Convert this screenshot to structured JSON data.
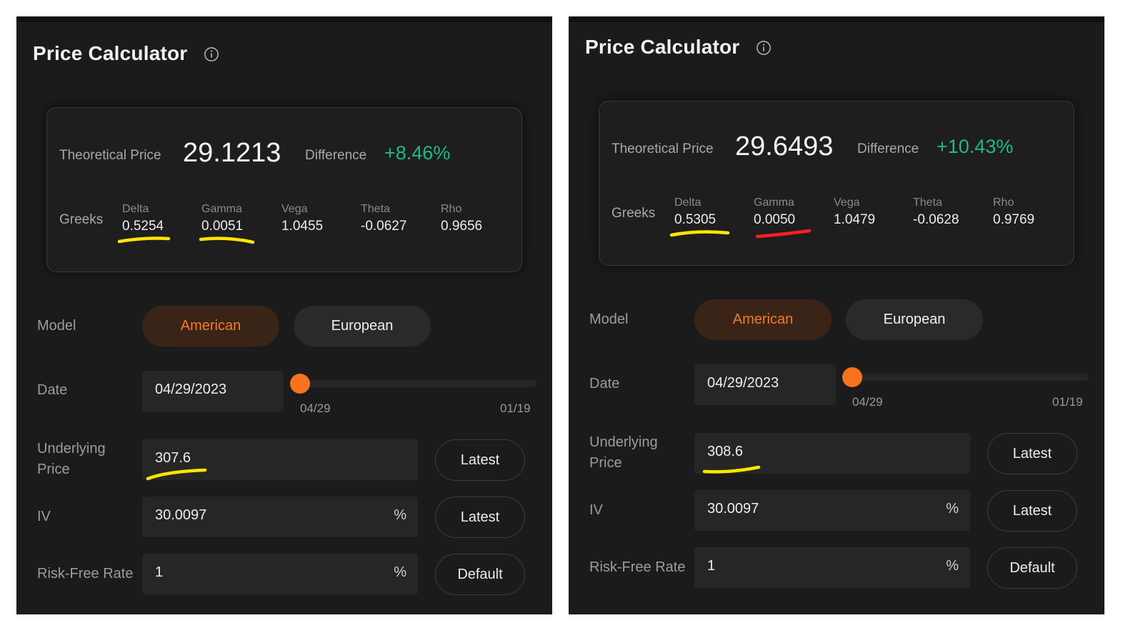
{
  "panels": [
    {
      "title": "Price Calculator",
      "theoretical_price_label": "Theoretical Price",
      "theoretical_price": "29.1213",
      "difference_label": "Difference",
      "difference": "+8.46%",
      "greeks_label": "Greeks",
      "greeks": [
        {
          "name": "Delta",
          "value": "0.5254"
        },
        {
          "name": "Gamma",
          "value": "0.0051"
        },
        {
          "name": "Vega",
          "value": "1.0455"
        },
        {
          "name": "Theta",
          "value": "-0.0627"
        },
        {
          "name": "Rho",
          "value": "0.9656"
        }
      ],
      "model_label": "Model",
      "model_options": [
        "American",
        "European"
      ],
      "date_label": "Date",
      "date_value": "04/29/2023",
      "slider_min": "04/29",
      "slider_max": "01/19",
      "underlying_label_1": "Underlying",
      "underlying_label_2": "Price",
      "underlying_value": "307.6",
      "iv_label": "IV",
      "iv_value": "30.0097",
      "rf_label": "Risk-Free Rate",
      "rf_value": "1",
      "percent": "%",
      "latest_label": "Latest",
      "default_label": "Default",
      "annotation_colors": {
        "delta": "#ffe500",
        "gamma": "#ffe500",
        "underlying": "#ffe500"
      }
    },
    {
      "title": "Price Calculator",
      "theoretical_price_label": "Theoretical Price",
      "theoretical_price": "29.6493",
      "difference_label": "Difference",
      "difference": "+10.43%",
      "greeks_label": "Greeks",
      "greeks": [
        {
          "name": "Delta",
          "value": "0.5305"
        },
        {
          "name": "Gamma",
          "value": "0.0050"
        },
        {
          "name": "Vega",
          "value": "1.0479"
        },
        {
          "name": "Theta",
          "value": "-0.0628"
        },
        {
          "name": "Rho",
          "value": "0.9769"
        }
      ],
      "model_label": "Model",
      "model_options": [
        "American",
        "European"
      ],
      "date_label": "Date",
      "date_value": "04/29/2023",
      "slider_min": "04/29",
      "slider_max": "01/19",
      "underlying_label_1": "Underlying",
      "underlying_label_2": "Price",
      "underlying_value": "308.6",
      "iv_label": "IV",
      "iv_value": "30.0097",
      "rf_label": "Risk-Free Rate",
      "rf_value": "1",
      "percent": "%",
      "latest_label": "Latest",
      "default_label": "Default",
      "annotation_colors": {
        "delta": "#ffe500",
        "gamma": "#ff1e1e",
        "underlying": "#ffe500"
      }
    }
  ],
  "accent_color": "#f7731d",
  "positive_color": "#1fb98a",
  "info_icon": "info-circle-icon",
  "selected_model": "American",
  "slider_value_fraction": 0.0
}
